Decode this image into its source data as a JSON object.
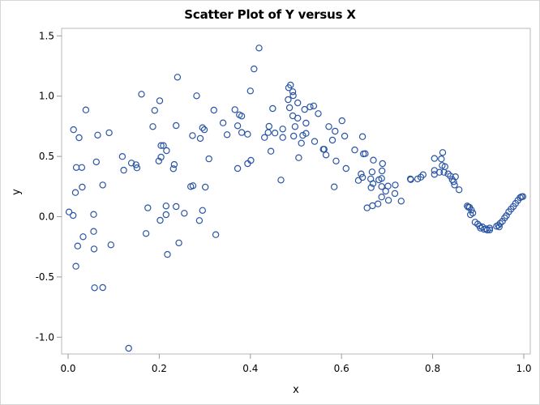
{
  "chart_data": {
    "type": "scatter",
    "title": "Scatter Plot of Y versus X",
    "xlabel": "x",
    "ylabel": "y",
    "xlim": [
      -0.015,
      1.014
    ],
    "ylim": [
      -1.14,
      1.57
    ],
    "xticks": [
      0.0,
      0.2,
      0.4,
      0.6,
      0.8,
      1.0
    ],
    "xtick_labels": [
      "0.0",
      "0.2",
      "0.4",
      "0.6",
      "0.8",
      "1.0"
    ],
    "yticks": [
      -1.0,
      -0.5,
      0.0,
      0.5,
      1.0,
      1.5
    ],
    "ytick_labels": [
      "-1.0",
      "-0.5",
      "0.0",
      "0.5",
      "1.0",
      "1.5"
    ],
    "grid": false,
    "legend": null,
    "marker": "open-circle",
    "marker_color": "#2A55A5",
    "series": [
      {
        "name": "y",
        "points": [
          [
            0.002,
            0.039
          ],
          [
            0.011,
            0.01
          ],
          [
            0.012,
            0.722
          ],
          [
            0.016,
            0.2
          ],
          [
            0.017,
            -0.411
          ],
          [
            0.018,
            0.408
          ],
          [
            0.021,
            -0.243
          ],
          [
            0.024,
            0.655
          ],
          [
            0.03,
            0.408
          ],
          [
            0.031,
            0.245
          ],
          [
            0.033,
            -0.167
          ],
          [
            0.039,
            0.886
          ],
          [
            0.056,
            0.019
          ],
          [
            0.056,
            -0.122
          ],
          [
            0.057,
            -0.268
          ],
          [
            0.058,
            -0.59
          ],
          [
            0.062,
            0.454
          ],
          [
            0.065,
            0.677
          ],
          [
            0.076,
            0.263
          ],
          [
            0.076,
            -0.588
          ],
          [
            0.09,
            0.696
          ],
          [
            0.094,
            -0.234
          ],
          [
            0.119,
            0.499
          ],
          [
            0.122,
            0.386
          ],
          [
            0.133,
            -1.092
          ],
          [
            0.139,
            0.445
          ],
          [
            0.149,
            0.431
          ],
          [
            0.151,
            0.405
          ],
          [
            0.161,
            1.016
          ],
          [
            0.171,
            -0.14
          ],
          [
            0.175,
            0.073
          ],
          [
            0.186,
            0.747
          ],
          [
            0.19,
            0.882
          ],
          [
            0.199,
            0.462
          ],
          [
            0.201,
            0.962
          ],
          [
            0.202,
            -0.03
          ],
          [
            0.204,
            0.59
          ],
          [
            0.204,
            0.494
          ],
          [
            0.209,
            0.59
          ],
          [
            0.215,
            0.089
          ],
          [
            0.215,
            0.017
          ],
          [
            0.216,
            0.548
          ],
          [
            0.218,
            -0.313
          ],
          [
            0.231,
            0.398
          ],
          [
            0.233,
            0.433
          ],
          [
            0.237,
            0.756
          ],
          [
            0.237,
            0.084
          ],
          [
            0.24,
            1.157
          ],
          [
            0.243,
            -0.218
          ],
          [
            0.255,
            0.028
          ],
          [
            0.269,
            0.25
          ],
          [
            0.273,
            0.673
          ],
          [
            0.274,
            0.257
          ],
          [
            0.282,
            1.003
          ],
          [
            0.288,
            -0.032
          ],
          [
            0.29,
            0.649
          ],
          [
            0.295,
            0.738
          ],
          [
            0.295,
            0.052
          ],
          [
            0.299,
            0.722
          ],
          [
            0.301,
            0.245
          ],
          [
            0.309,
            0.48
          ],
          [
            0.32,
            0.884
          ],
          [
            0.324,
            -0.149
          ],
          [
            0.34,
            0.778
          ],
          [
            0.349,
            0.68
          ],
          [
            0.366,
            0.888
          ],
          [
            0.372,
            0.754
          ],
          [
            0.372,
            0.4
          ],
          [
            0.376,
            0.845
          ],
          [
            0.381,
            0.835
          ],
          [
            0.381,
            0.698
          ],
          [
            0.394,
            0.684
          ],
          [
            0.394,
            0.44
          ],
          [
            0.4,
            1.043
          ],
          [
            0.401,
            0.467
          ],
          [
            0.408,
            1.226
          ],
          [
            0.419,
            1.399
          ],
          [
            0.431,
            0.657
          ],
          [
            0.439,
            0.698
          ],
          [
            0.441,
            0.749
          ],
          [
            0.445,
            0.543
          ],
          [
            0.449,
            0.897
          ],
          [
            0.454,
            0.694
          ],
          [
            0.467,
            0.304
          ],
          [
            0.471,
            0.727
          ],
          [
            0.471,
            0.657
          ],
          [
            0.483,
            0.971
          ],
          [
            0.484,
            1.07
          ],
          [
            0.486,
            0.904
          ],
          [
            0.488,
            1.092
          ],
          [
            0.493,
            1.036
          ],
          [
            0.493,
            0.837
          ],
          [
            0.494,
            1.005
          ],
          [
            0.495,
            0.669
          ],
          [
            0.498,
            0.747
          ],
          [
            0.504,
            0.944
          ],
          [
            0.504,
            0.817
          ],
          [
            0.506,
            0.489
          ],
          [
            0.512,
            0.61
          ],
          [
            0.515,
            0.675
          ],
          [
            0.519,
            0.89
          ],
          [
            0.522,
            0.776
          ],
          [
            0.522,
            0.691
          ],
          [
            0.531,
            0.911
          ],
          [
            0.539,
            0.919
          ],
          [
            0.541,
            0.624
          ],
          [
            0.549,
            0.855
          ],
          [
            0.56,
            0.559
          ],
          [
            0.562,
            0.559
          ],
          [
            0.566,
            0.512
          ],
          [
            0.572,
            0.747
          ],
          [
            0.58,
            0.635
          ],
          [
            0.584,
            0.247
          ],
          [
            0.586,
            0.709
          ],
          [
            0.588,
            0.462
          ],
          [
            0.601,
            0.796
          ],
          [
            0.607,
            0.669
          ],
          [
            0.61,
            0.4
          ],
          [
            0.629,
            0.554
          ],
          [
            0.637,
            0.301
          ],
          [
            0.643,
            0.355
          ],
          [
            0.646,
            0.664
          ],
          [
            0.646,
            0.326
          ],
          [
            0.648,
            0.521
          ],
          [
            0.652,
            0.523
          ],
          [
            0.656,
            0.073
          ],
          [
            0.664,
            0.313
          ],
          [
            0.665,
            0.241
          ],
          [
            0.667,
            0.371
          ],
          [
            0.668,
            0.091
          ],
          [
            0.669,
            0.274
          ],
          [
            0.67,
            0.469
          ],
          [
            0.68,
            0.106
          ],
          [
            0.682,
            0.306
          ],
          [
            0.688,
            0.317
          ],
          [
            0.688,
            0.25
          ],
          [
            0.688,
            0.163
          ],
          [
            0.689,
            0.38
          ],
          [
            0.69,
            0.44
          ],
          [
            0.697,
            0.212
          ],
          [
            0.702,
            0.254
          ],
          [
            0.703,
            0.136
          ],
          [
            0.717,
            0.192
          ],
          [
            0.718,
            0.263
          ],
          [
            0.731,
            0.129
          ],
          [
            0.751,
            0.313
          ],
          [
            0.752,
            0.308
          ],
          [
            0.767,
            0.313
          ],
          [
            0.774,
            0.328
          ],
          [
            0.779,
            0.348
          ],
          [
            0.804,
            0.483
          ],
          [
            0.804,
            0.384
          ],
          [
            0.804,
            0.351
          ],
          [
            0.815,
            0.368
          ],
          [
            0.819,
            0.479
          ],
          [
            0.821,
            0.425
          ],
          [
            0.822,
            0.532
          ],
          [
            0.825,
            0.368
          ],
          [
            0.827,
            0.415
          ],
          [
            0.834,
            0.355
          ],
          [
            0.839,
            0.337
          ],
          [
            0.843,
            0.308
          ],
          [
            0.846,
            0.29
          ],
          [
            0.848,
            0.263
          ],
          [
            0.85,
            0.331
          ],
          [
            0.858,
            0.223
          ],
          [
            0.876,
            0.089
          ],
          [
            0.878,
            0.08
          ],
          [
            0.881,
            0.077
          ],
          [
            0.883,
            0.017
          ],
          [
            0.885,
            0.055
          ],
          [
            0.888,
            0.03
          ],
          [
            0.893,
            -0.046
          ],
          [
            0.899,
            -0.062
          ],
          [
            0.903,
            -0.078
          ],
          [
            0.905,
            -0.095
          ],
          [
            0.909,
            -0.085
          ],
          [
            0.913,
            -0.105
          ],
          [
            0.917,
            -0.1
          ],
          [
            0.92,
            -0.111
          ],
          [
            0.925,
            -0.11
          ],
          [
            0.925,
            -0.095
          ],
          [
            0.94,
            -0.079
          ],
          [
            0.944,
            -0.072
          ],
          [
            0.946,
            -0.085
          ],
          [
            0.948,
            -0.056
          ],
          [
            0.953,
            -0.038
          ],
          [
            0.958,
            -0.01
          ],
          [
            0.962,
            0.009
          ],
          [
            0.967,
            0.04
          ],
          [
            0.972,
            0.063
          ],
          [
            0.977,
            0.085
          ],
          [
            0.982,
            0.11
          ],
          [
            0.987,
            0.135
          ],
          [
            0.992,
            0.158
          ],
          [
            0.995,
            0.165
          ],
          [
            0.998,
            0.167
          ]
        ]
      }
    ]
  }
}
